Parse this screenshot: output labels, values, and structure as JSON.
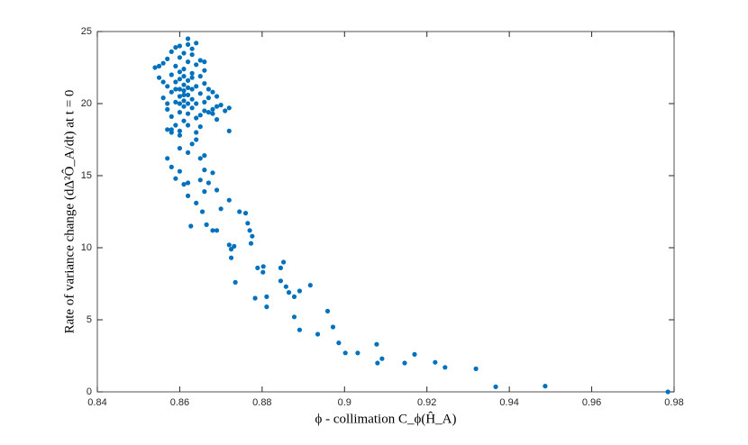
{
  "chart_data": {
    "type": "scatter",
    "xlabel": "ϕ - collimation C_ϕ(Ĥ_A)",
    "ylabel": "Rate of variance change (dΔ²Ô_A/dt) at t = 0",
    "xlim": [
      0.84,
      0.98
    ],
    "xticks": [
      0.84,
      0.86,
      0.88,
      0.9,
      0.92,
      0.94,
      0.96,
      0.98
    ],
    "ylim": [
      0,
      25
    ],
    "yticks": [
      0,
      5,
      10,
      15,
      20,
      25
    ],
    "series": [
      {
        "color": "#0072bd",
        "x": [
          0.9785,
          0.9487,
          0.9367,
          0.9319,
          0.9244,
          0.922,
          0.917,
          0.9146,
          0.9091,
          0.908,
          0.9078,
          0.9032,
          0.9002,
          0.8986,
          0.8972,
          0.8959,
          0.8935,
          0.8891,
          0.8878,
          0.8878,
          0.8917,
          0.8891,
          0.8852,
          0.8845,
          0.8845,
          0.8858,
          0.8865,
          0.8802,
          0.8789,
          0.8803,
          0.8776,
          0.8773,
          0.8765,
          0.877,
          0.876,
          0.8745,
          0.872,
          0.87,
          0.8783,
          0.8811,
          0.8811,
          0.8735,
          0.8725,
          0.872,
          0.8732,
          0.8725,
          0.8627,
          0.8665,
          0.8655,
          0.868,
          0.869,
          0.869,
          0.867,
          0.866,
          0.868,
          0.865,
          0.862,
          0.863,
          0.86,
          0.858,
          0.857,
          0.867,
          0.869,
          0.872,
          0.872,
          0.859,
          0.861,
          0.862,
          0.86,
          0.858,
          0.86,
          0.862,
          0.864,
          0.866,
          0.865,
          0.866,
          0.864,
          0.868,
          0.869,
          0.857,
          0.854,
          0.855,
          0.856,
          0.856,
          0.857,
          0.857,
          0.857,
          0.858,
          0.858,
          0.858,
          0.858,
          0.859,
          0.859,
          0.859,
          0.859,
          0.859,
          0.86,
          0.86,
          0.86,
          0.86,
          0.86,
          0.86,
          0.861,
          0.861,
          0.861,
          0.861,
          0.861,
          0.861,
          0.861,
          0.862,
          0.862,
          0.862,
          0.862,
          0.862,
          0.862,
          0.863,
          0.863,
          0.863,
          0.863,
          0.863,
          0.864,
          0.864,
          0.864,
          0.864,
          0.865,
          0.865,
          0.865,
          0.865,
          0.866,
          0.866,
          0.866,
          0.866,
          0.867,
          0.867,
          0.868,
          0.868,
          0.869,
          0.87,
          0.871,
          0.86,
          0.862,
          0.863,
          0.857,
          0.856,
          0.855,
          0.858,
          0.86,
          0.861,
          0.861,
          0.862,
          0.86,
          0.859,
          0.863,
          0.864,
          0.862,
          0.866,
          0.865,
          0.864
        ],
        "values": [
          0,
          0.4,
          0.35,
          1.6,
          1.7,
          2.05,
          2.6,
          2.0,
          2.3,
          2.0,
          3.3,
          2.7,
          2.7,
          3.4,
          4.5,
          5.6,
          4.0,
          4.3,
          5.2,
          6.6,
          7.4,
          7.0,
          9.0,
          8.6,
          7.7,
          7.3,
          6.9,
          8.3,
          8.6,
          8.7,
          10.8,
          10.3,
          11.7,
          11.2,
          12.4,
          12.5,
          13.3,
          12.7,
          6.5,
          6.6,
          5.9,
          7.6,
          9.3,
          10.2,
          10.1,
          9.9,
          11.5,
          11.6,
          12.5,
          11.2,
          11.2,
          14.0,
          14.5,
          15.4,
          15.2,
          16.2,
          16.6,
          17.2,
          17.8,
          18.0,
          18.2,
          19.4,
          18.9,
          19.7,
          18.1,
          14.8,
          14.4,
          14.5,
          15.3,
          15.6,
          16.9,
          13.6,
          13.1,
          13.9,
          14.7,
          16.4,
          17.5,
          19.3,
          19.8,
          16.2,
          22.5,
          21.8,
          22.8,
          20.4,
          21.2,
          23.1,
          19.6,
          22.0,
          20.8,
          23.6,
          19.1,
          21.5,
          22.6,
          20.1,
          18.5,
          23.9,
          21.0,
          22.2,
          20.5,
          19.4,
          23.2,
          21.7,
          20.9,
          22.4,
          21.3,
          19.8,
          23.5,
          20.2,
          18.8,
          21.6,
          22.9,
          20.6,
          24.5,
          19.3,
          21.1,
          22.1,
          20.3,
          23.4,
          21.8,
          19.7,
          21.2,
          22.7,
          20.0,
          24.2,
          21.9,
          20.7,
          23.0,
          19.2,
          21.4,
          22.3,
          20.1,
          22.9,
          21.0,
          20.4,
          20.8,
          19.6,
          20.5,
          19.9,
          19.5,
          24.0,
          24.1,
          23.8,
          20.0,
          21.5,
          22.6,
          18.2,
          18.1,
          20.6,
          21.9,
          20.0,
          20.0,
          21.0,
          21.0,
          19.0,
          18.5,
          19.5,
          18.4,
          18.0
        ]
      }
    ]
  }
}
